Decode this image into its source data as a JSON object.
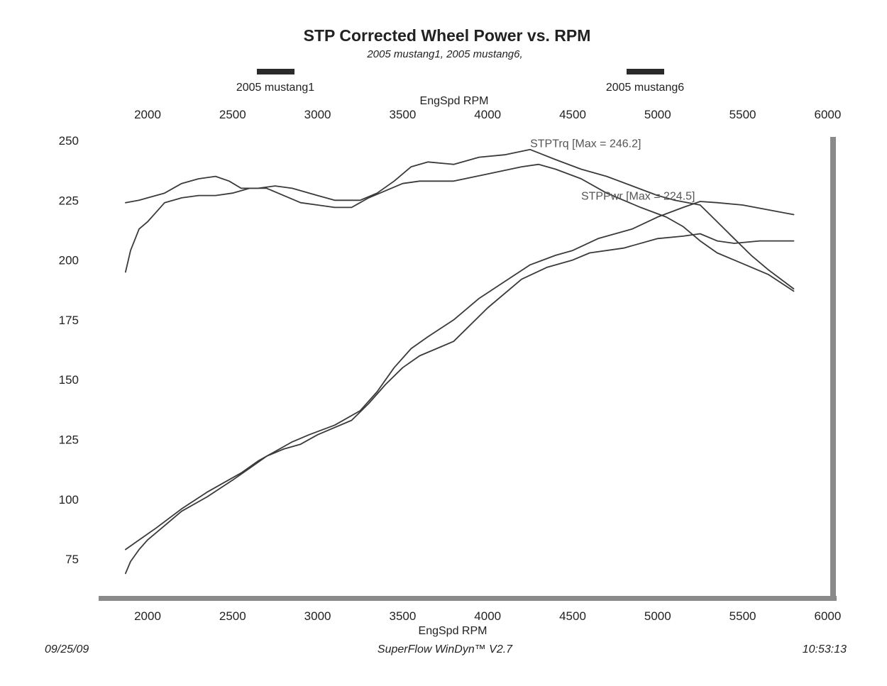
{
  "chart_data": {
    "type": "line",
    "title": "STP Corrected Wheel Power vs. RPM",
    "subtitle": "2005 mustang1, 2005 mustang6,",
    "xlabel_top": "EngSpd  RPM",
    "xlabel_bottom": "EngSpd  RPM",
    "xlim": [
      1800,
      6000
    ],
    "ylim": [
      62,
      250
    ],
    "x_ticks": [
      2000,
      2500,
      3000,
      3500,
      4000,
      4500,
      5000,
      5500,
      6000
    ],
    "y_ticks": [
      75,
      100,
      125,
      150,
      175,
      200,
      225,
      250
    ],
    "grid": false,
    "legend": [
      {
        "name": "2005 mustang1",
        "color": "#2b2b2b"
      },
      {
        "name": "2005 mustang6",
        "color": "#2b2b2b"
      }
    ],
    "annotations": [
      {
        "text": "STPTrq [Max = 246.2]",
        "x": 4250,
        "y": 249
      },
      {
        "text": "STPPwr [Max = 224.5]",
        "x": 4550,
        "y": 227
      }
    ],
    "series": [
      {
        "name": "2005 mustang1",
        "measure": "STPTrq",
        "color": "#3a3a3a",
        "points": [
          [
            1870,
            224
          ],
          [
            1950,
            225
          ],
          [
            2000,
            226
          ],
          [
            2100,
            228
          ],
          [
            2200,
            232
          ],
          [
            2300,
            234
          ],
          [
            2400,
            235
          ],
          [
            2480,
            233
          ],
          [
            2550,
            230
          ],
          [
            2650,
            230
          ],
          [
            2750,
            231
          ],
          [
            2850,
            230
          ],
          [
            3000,
            227
          ],
          [
            3100,
            225
          ],
          [
            3250,
            225
          ],
          [
            3350,
            228
          ],
          [
            3450,
            233
          ],
          [
            3550,
            239
          ],
          [
            3650,
            241
          ],
          [
            3800,
            240
          ],
          [
            3950,
            243
          ],
          [
            4100,
            244
          ],
          [
            4250,
            246.2
          ],
          [
            4400,
            242
          ],
          [
            4550,
            238
          ],
          [
            4700,
            235
          ],
          [
            4850,
            231
          ],
          [
            5000,
            227
          ],
          [
            5100,
            225
          ],
          [
            5250,
            223
          ],
          [
            5350,
            216
          ],
          [
            5450,
            209
          ],
          [
            5550,
            202
          ],
          [
            5650,
            196
          ],
          [
            5800,
            188
          ]
        ]
      },
      {
        "name": "2005 mustang6",
        "measure": "STPTrq",
        "color": "#3a3a3a",
        "points": [
          [
            1870,
            195
          ],
          [
            1900,
            204
          ],
          [
            1950,
            213
          ],
          [
            2000,
            216
          ],
          [
            2050,
            220
          ],
          [
            2100,
            224
          ],
          [
            2200,
            226
          ],
          [
            2300,
            227
          ],
          [
            2400,
            227
          ],
          [
            2500,
            228
          ],
          [
            2600,
            230
          ],
          [
            2700,
            230
          ],
          [
            2800,
            227
          ],
          [
            2900,
            224
          ],
          [
            3000,
            223
          ],
          [
            3100,
            222
          ],
          [
            3200,
            222
          ],
          [
            3300,
            226
          ],
          [
            3400,
            229
          ],
          [
            3500,
            232
          ],
          [
            3600,
            233
          ],
          [
            3800,
            233
          ],
          [
            4000,
            236
          ],
          [
            4200,
            239
          ],
          [
            4300,
            240
          ],
          [
            4400,
            238
          ],
          [
            4550,
            234
          ],
          [
            4700,
            228
          ],
          [
            4900,
            222
          ],
          [
            5050,
            218
          ],
          [
            5150,
            214
          ],
          [
            5250,
            208
          ],
          [
            5350,
            203
          ],
          [
            5450,
            200
          ],
          [
            5550,
            197
          ],
          [
            5650,
            194
          ],
          [
            5800,
            187
          ]
        ]
      },
      {
        "name": "2005 mustang1",
        "measure": "STPPwr",
        "color": "#3a3a3a",
        "points": [
          [
            1870,
            69
          ],
          [
            1900,
            74
          ],
          [
            1950,
            79
          ],
          [
            2000,
            83
          ],
          [
            2100,
            89
          ],
          [
            2200,
            95
          ],
          [
            2350,
            101
          ],
          [
            2500,
            108
          ],
          [
            2600,
            113
          ],
          [
            2700,
            118
          ],
          [
            2800,
            121
          ],
          [
            2900,
            123
          ],
          [
            3000,
            127
          ],
          [
            3200,
            133
          ],
          [
            3300,
            140
          ],
          [
            3400,
            148
          ],
          [
            3500,
            155
          ],
          [
            3600,
            160
          ],
          [
            3800,
            166
          ],
          [
            4000,
            180
          ],
          [
            4200,
            192
          ],
          [
            4350,
            197
          ],
          [
            4500,
            200
          ],
          [
            4600,
            203
          ],
          [
            4800,
            205
          ],
          [
            5000,
            209
          ],
          [
            5150,
            210
          ],
          [
            5250,
            211
          ],
          [
            5350,
            208
          ],
          [
            5450,
            207
          ],
          [
            5600,
            208
          ],
          [
            5800,
            208
          ]
        ]
      },
      {
        "name": "2005 mustang6",
        "measure": "STPPwr",
        "color": "#3a3a3a",
        "points": [
          [
            1870,
            79
          ],
          [
            1950,
            83
          ],
          [
            2050,
            88
          ],
          [
            2200,
            96
          ],
          [
            2350,
            103
          ],
          [
            2450,
            107
          ],
          [
            2550,
            111
          ],
          [
            2650,
            116
          ],
          [
            2750,
            120
          ],
          [
            2850,
            124
          ],
          [
            2950,
            127
          ],
          [
            3100,
            131
          ],
          [
            3250,
            137
          ],
          [
            3350,
            145
          ],
          [
            3450,
            155
          ],
          [
            3550,
            163
          ],
          [
            3650,
            168
          ],
          [
            3800,
            175
          ],
          [
            3950,
            184
          ],
          [
            4100,
            191
          ],
          [
            4250,
            198
          ],
          [
            4400,
            202
          ],
          [
            4500,
            204
          ],
          [
            4650,
            209
          ],
          [
            4850,
            213
          ],
          [
            5000,
            218
          ],
          [
            5150,
            222
          ],
          [
            5250,
            224.5
          ],
          [
            5350,
            224
          ],
          [
            5500,
            223
          ],
          [
            5650,
            221
          ],
          [
            5800,
            219
          ]
        ]
      }
    ]
  },
  "footer": {
    "date": "09/25/09",
    "software": "SuperFlow WinDyn™ V2.7",
    "time": "10:53:13"
  }
}
